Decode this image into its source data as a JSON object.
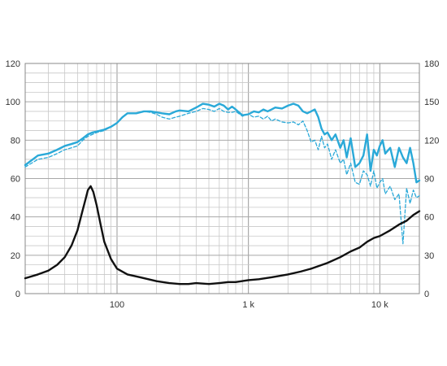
{
  "chart_data": {
    "type": "line",
    "x_scale": "log",
    "xlim": [
      20,
      20000
    ],
    "ylim_left": [
      0,
      120
    ],
    "ylim_right": [
      0,
      180
    ],
    "grid": true,
    "x_tick_labels": [
      {
        "value": 100,
        "label": "100"
      },
      {
        "value": 1000,
        "label": "1 k"
      },
      {
        "value": 10000,
        "label": "10 k"
      }
    ],
    "y_left_ticks": [
      "0",
      "20",
      "40",
      "60",
      "80",
      "100",
      "120"
    ],
    "y_right_ticks": [
      "0",
      "30",
      "60",
      "90",
      "120",
      "150",
      "180"
    ],
    "colors": {
      "response": "#2aa9d8",
      "impedance": "#111111",
      "grid": "#c8c8c8",
      "axis": "#888888"
    },
    "series": [
      {
        "id": "response-solid",
        "style": "solid",
        "x": [
          20,
          25,
          30,
          35,
          40,
          45,
          50,
          55,
          60,
          65,
          70,
          80,
          90,
          100,
          110,
          120,
          140,
          160,
          180,
          200,
          220,
          250,
          280,
          300,
          350,
          400,
          450,
          500,
          550,
          600,
          650,
          700,
          750,
          800,
          900,
          1000,
          1100,
          1200,
          1300,
          1400,
          1500,
          1600,
          1800,
          2000,
          2200,
          2400,
          2600,
          2800,
          3000,
          3200,
          3400,
          3600,
          3800,
          4000,
          4300,
          4600,
          5000,
          5300,
          5600,
          6000,
          6500,
          7000,
          7500,
          8000,
          8500,
          9000,
          9500,
          10000,
          10500,
          11000,
          12000,
          13000,
          14000,
          15000,
          16000,
          17000,
          18000,
          19000,
          20000
        ],
        "y": [
          67,
          72,
          73,
          75,
          77,
          78,
          79,
          81,
          83,
          84,
          84.5,
          85.5,
          87,
          89,
          92,
          94,
          94,
          95,
          95,
          94.5,
          94,
          93.5,
          95,
          95.5,
          95,
          97,
          99,
          98.5,
          97.5,
          99,
          98,
          96,
          97.5,
          96,
          93,
          93.5,
          95,
          94.5,
          96,
          95,
          96,
          97,
          96.5,
          98,
          99,
          98,
          95,
          94,
          95,
          96,
          92,
          86,
          83,
          84,
          80,
          83,
          76,
          80,
          71,
          81,
          66,
          68,
          72,
          83,
          64,
          75,
          72,
          77,
          80,
          73,
          76,
          66,
          76,
          71,
          68,
          76,
          68,
          58,
          59
        ]
      },
      {
        "id": "response-dashed",
        "style": "dashed",
        "x": [
          20,
          25,
          30,
          35,
          40,
          45,
          50,
          55,
          60,
          65,
          70,
          80,
          90,
          100,
          110,
          120,
          140,
          160,
          180,
          200,
          220,
          250,
          280,
          300,
          350,
          400,
          450,
          500,
          550,
          600,
          650,
          700,
          750,
          800,
          900,
          1000,
          1100,
          1200,
          1300,
          1400,
          1500,
          1600,
          1800,
          2000,
          2200,
          2400,
          2600,
          2800,
          3000,
          3200,
          3400,
          3600,
          3800,
          4000,
          4300,
          4600,
          5000,
          5300,
          5600,
          6000,
          6500,
          7000,
          7500,
          8000,
          8500,
          9000,
          9500,
          10000,
          10500,
          11000,
          12000,
          13000,
          14000,
          15000,
          16000,
          17000,
          18000,
          19000,
          20000
        ],
        "y": [
          66,
          70,
          71,
          73,
          75,
          76,
          77,
          80,
          82,
          83,
          84,
          85,
          87,
          89,
          92,
          94,
          94,
          95,
          94.5,
          93.5,
          92,
          91,
          92,
          92.5,
          94,
          95,
          96.5,
          96,
          95,
          96.5,
          95,
          94.5,
          94.5,
          95,
          92.5,
          93.5,
          92,
          92.5,
          91,
          92.5,
          90,
          91,
          89.5,
          89,
          89.5,
          88,
          90,
          85,
          79,
          80,
          75,
          82,
          76,
          78,
          70,
          75,
          68,
          70,
          62,
          68,
          58,
          57,
          64,
          62,
          56,
          64,
          55,
          58,
          60,
          52,
          56,
          49,
          52,
          26,
          55,
          47,
          54,
          50,
          51
        ]
      },
      {
        "id": "impedance",
        "style": "solid-black",
        "x": [
          20,
          25,
          30,
          35,
          40,
          45,
          50,
          55,
          58,
          60,
          63,
          66,
          70,
          75,
          80,
          90,
          100,
          120,
          150,
          200,
          250,
          300,
          350,
          400,
          500,
          600,
          700,
          800,
          1000,
          1200,
          1500,
          2000,
          2500,
          3000,
          4000,
          5000,
          6000,
          7000,
          8000,
          9000,
          10000,
          12000,
          14000,
          16000,
          18000,
          20000
        ],
        "y": [
          8,
          10,
          12,
          15,
          19,
          25,
          33,
          44,
          50,
          54,
          56,
          53,
          46,
          36,
          27,
          18,
          13,
          10,
          8.5,
          6.5,
          5.5,
          5,
          5,
          5.5,
          5,
          5.5,
          6,
          6,
          7,
          7.5,
          8.5,
          10,
          11.5,
          13,
          16,
          19,
          22,
          24,
          27,
          29,
          30,
          33,
          36,
          38,
          41,
          43
        ]
      }
    ]
  }
}
